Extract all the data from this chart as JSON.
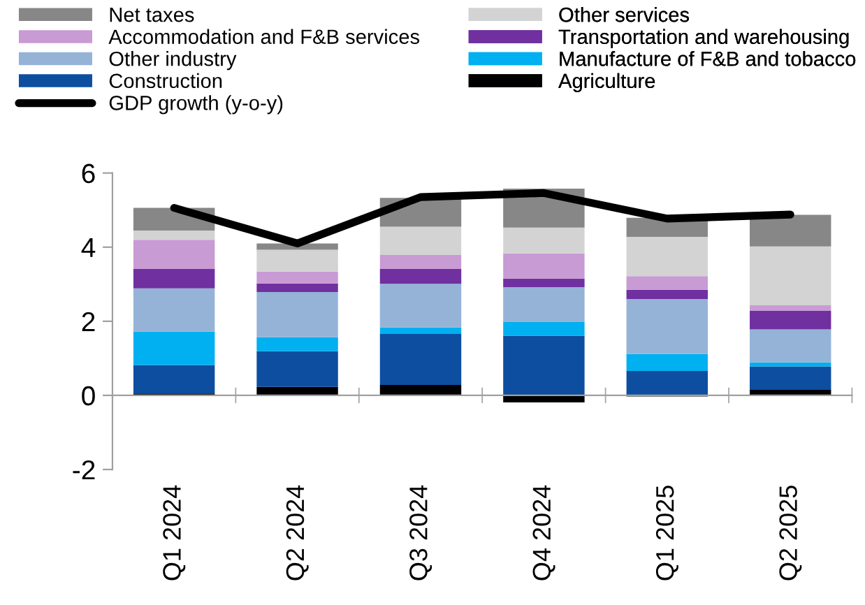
{
  "chart_data": {
    "type": "bar",
    "stacked": true,
    "categories": [
      "Q1 2024",
      "Q2 2024",
      "Q3 2024",
      "Q4 2024",
      "Q1 2025",
      "Q2 2025"
    ],
    "series": [
      {
        "name": "Agriculture",
        "color": "#000000",
        "values": [
          0.05,
          0.23,
          0.28,
          -0.19,
          -0.03,
          0.15
        ]
      },
      {
        "name": "Construction",
        "color": "#0d4ea1",
        "values": [
          0.77,
          0.96,
          1.38,
          1.61,
          0.66,
          0.63
        ]
      },
      {
        "name": "Manufacture of F&B and tobacco",
        "color": "#00b0f0",
        "values": [
          0.9,
          0.38,
          0.17,
          0.37,
          0.46,
          0.11
        ]
      },
      {
        "name": "Other industry",
        "color": "#95b3d7",
        "values": [
          1.17,
          1.22,
          1.18,
          0.94,
          1.48,
          0.89
        ]
      },
      {
        "name": "Transportation and warehousing",
        "color": "#7030a0",
        "values": [
          0.52,
          0.23,
          0.4,
          0.23,
          0.25,
          0.5
        ]
      },
      {
        "name": "Accommodation and F&B services",
        "color": "#c89bd4",
        "values": [
          0.79,
          0.32,
          0.38,
          0.68,
          0.37,
          0.15
        ]
      },
      {
        "name": "Other services",
        "color": "#d3d3d3",
        "values": [
          0.25,
          0.59,
          0.76,
          0.7,
          1.06,
          1.59
        ]
      },
      {
        "name": "Net taxes",
        "color": "#878787",
        "values": [
          0.61,
          0.17,
          0.78,
          1.05,
          0.51,
          0.85
        ]
      },
      {
        "name": "GDP growth (y-o-y)",
        "type": "line",
        "color": "#000000",
        "values": [
          5.06,
          4.1,
          5.35,
          5.46,
          4.77,
          4.88
        ]
      }
    ],
    "ylim": [
      -2,
      6
    ],
    "yticks": [
      -2,
      0,
      2,
      4,
      6
    ],
    "legend": "top",
    "marker": "none",
    "line_style": "solid"
  }
}
